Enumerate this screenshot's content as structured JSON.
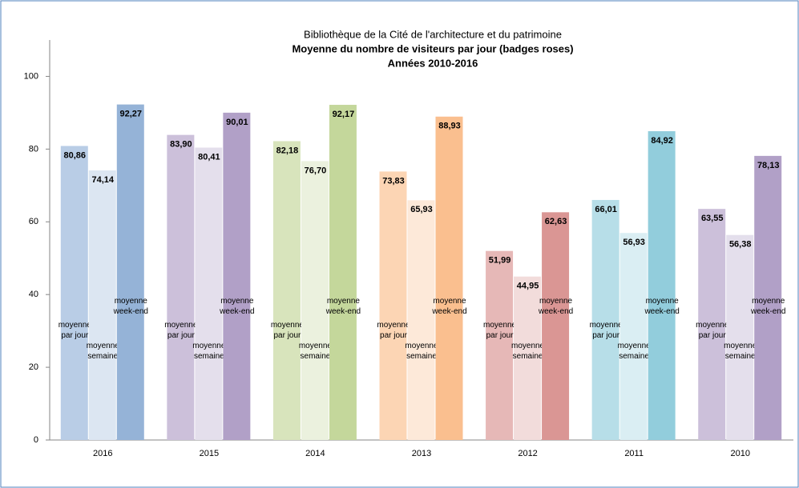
{
  "chart_data": {
    "type": "bar",
    "title": "Bibliothèque de la Cité de l'architecture et du patrimoine",
    "subtitle": "Moyenne du nombre de visiteurs par jour (badges roses)",
    "subtitle2": "Années 2010-2016",
    "categories": [
      "2016",
      "2015",
      "2014",
      "2013",
      "2012",
      "2011",
      "2010"
    ],
    "series": [
      {
        "name": "moyenne par jour",
        "colors": [
          "#b9cde6",
          "#ccc0da",
          "#d8e4bc",
          "#fcd5b4",
          "#e6b8b7",
          "#b7dee8",
          "#ccc0da"
        ],
        "values": [
          80.86,
          83.9,
          82.18,
          73.83,
          51.99,
          66.01,
          63.55
        ],
        "value_labels": [
          "80,86",
          "83,90",
          "82,18",
          "73,83",
          "51,99",
          "66,01",
          "63,55"
        ]
      },
      {
        "name": "moyenne semaine",
        "colors": [
          "#dce6f2",
          "#e4dfec",
          "#ebf1de",
          "#fde9d9",
          "#f2dcdb",
          "#daeef3",
          "#e4dfec"
        ],
        "values": [
          74.14,
          80.41,
          76.7,
          65.93,
          44.95,
          56.93,
          56.38
        ],
        "value_labels": [
          "74,14",
          "80,41",
          "76,70",
          "65,93",
          "44,95",
          "56,93",
          "56,38"
        ]
      },
      {
        "name": "moyenne week-end",
        "colors": [
          "#95b3d7",
          "#b1a0c7",
          "#c4d79b",
          "#fabf8f",
          "#da9694",
          "#92cddc",
          "#b1a0c7"
        ],
        "values": [
          92.27,
          90.01,
          92.17,
          88.93,
          62.63,
          84.92,
          78.13
        ],
        "value_labels": [
          "92,27",
          "90,01",
          "92,17",
          "88,93",
          "62,63",
          "84,92",
          "78,13"
        ]
      }
    ],
    "ylim": [
      0,
      110
    ],
    "yticks": [
      0,
      20,
      40,
      60,
      80,
      100
    ],
    "grid": false
  }
}
